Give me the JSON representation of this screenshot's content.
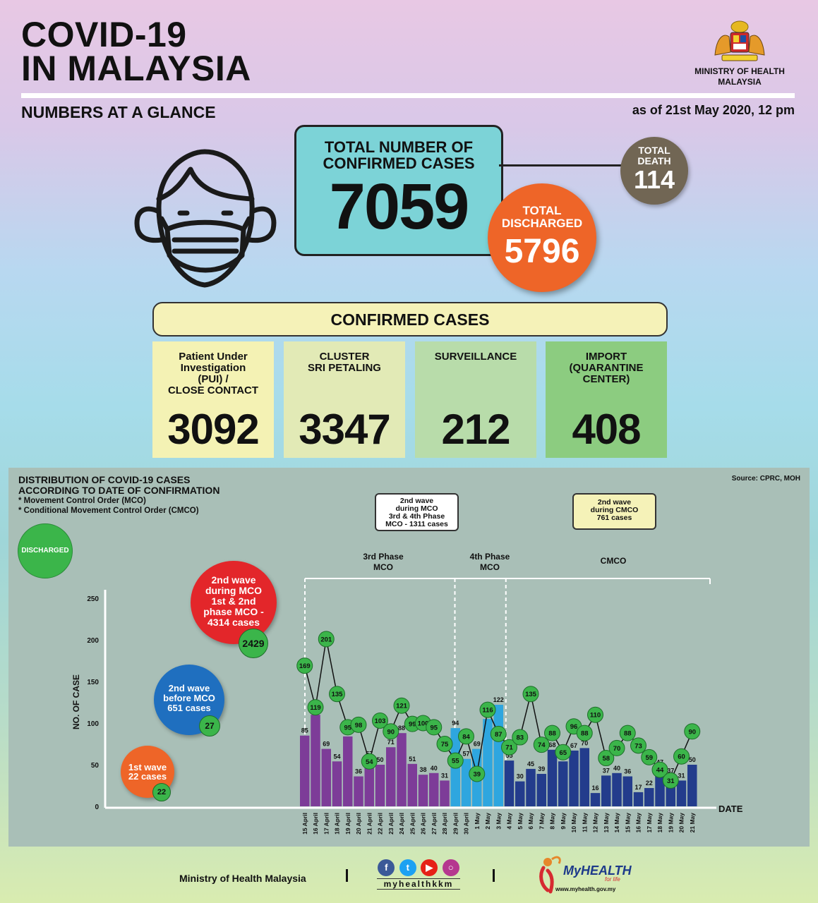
{
  "header": {
    "title_line1": "COVID-19",
    "title_line2": "IN MALAYSIA",
    "subtitle": "NUMBERS AT A GLANCE",
    "as_of": "as of 21st May 2020, 12 pm",
    "ministry_line1": "MINISTRY OF HEALTH",
    "ministry_line2": "MALAYSIA"
  },
  "totals": {
    "confirmed_label_line1": "TOTAL NUMBER OF",
    "confirmed_label_line2": "CONFIRMED CASES",
    "confirmed": "7059",
    "death_label_line1": "TOTAL",
    "death_label_line2": "DEATH",
    "death": "114",
    "discharged_label_line1": "TOTAL",
    "discharged_label_line2": "DISCHARGED",
    "discharged": "5796"
  },
  "confirmed_cases": {
    "header": "CONFIRMED CASES",
    "boxes": [
      {
        "label_lines": [
          "Patient Under",
          "Investigation",
          "(PUI) /",
          "CLOSE CONTACT"
        ],
        "value": "3092"
      },
      {
        "label_lines": [
          "CLUSTER",
          "SRI PETALING"
        ],
        "value": "3347"
      },
      {
        "label_lines": [
          "SURVEILLANCE"
        ],
        "value": "212"
      },
      {
        "label_lines": [
          "IMPORT",
          "(QUARANTINE",
          "CENTER)"
        ],
        "value": "408"
      }
    ]
  },
  "distribution": {
    "title_line1": "DISTRIBUTION OF COVID-19 CASES",
    "title_line2": "ACCORDING TO DATE OF CONFIRMATION",
    "note1": "* Movement Control Order (MCO)",
    "note2": "* Conditional Movement Control Order (CMCO)",
    "source": "Source: CPRC, MOH",
    "legend_discharged": "DISCHARGED",
    "box_mco_lines": [
      "2nd wave",
      "during MCO",
      "3rd & 4th Phase",
      "MCO - 1311 cases"
    ],
    "box_cmco_lines": [
      "2nd wave",
      "during CMCO",
      "761 cases"
    ],
    "phase3_lines": [
      "3rd Phase",
      "MCO"
    ],
    "phase4_lines": [
      "4th Phase",
      "MCO"
    ],
    "cmco": "CMCO",
    "wave1_lines": [
      "1st wave",
      "22 cases"
    ],
    "wave1_discharged": "22",
    "wave2_before_lines": [
      "2nd wave",
      "before MCO",
      "651 cases"
    ],
    "wave2_before_discharged": "27",
    "wave2_mco_lines": [
      "2nd wave",
      "during MCO",
      "1st & 2nd",
      "phase MCO -",
      "4314 cases"
    ],
    "wave2_mco_discharged": "2429"
  },
  "chart_data": {
    "type": "bar",
    "ylabel": "NO. OF CASE",
    "xlabel": "DATE",
    "ylim": [
      0,
      250
    ],
    "yticks": [
      0,
      50,
      100,
      150,
      200,
      250
    ],
    "categories": [
      "15 April",
      "16 April",
      "17 April",
      "18 April",
      "19 April",
      "20 April",
      "21 April",
      "22 April",
      "23 April",
      "24 April",
      "25 April",
      "26 April",
      "27 April",
      "28 April",
      "29 April",
      "30 April",
      "1 May",
      "2 May",
      "3 May",
      "4 May",
      "5 May",
      "6 May",
      "7 May",
      "8 May",
      "9 May",
      "10 May",
      "11 May",
      "12 May",
      "13 May",
      "14 May",
      "15 May",
      "16 May",
      "17 May",
      "18 May",
      "19 May",
      "20 May",
      "21 May"
    ],
    "series": [
      {
        "values": [
          85,
          110,
          69,
          54,
          84,
          36,
          57,
          50,
          71,
          88,
          51,
          38,
          40,
          31,
          94,
          57,
          69,
          105,
          122,
          55,
          30,
          45,
          39,
          68,
          54,
          67,
          70,
          16,
          37,
          40,
          36,
          17,
          22,
          47,
          37,
          31,
          50
        ]
      },
      {
        "name": "DISCHARGED",
        "values": [
          169,
          119,
          201,
          135,
          95,
          98,
          54,
          103,
          90,
          121,
          99,
          100,
          95,
          75,
          55,
          84,
          39,
          116,
          87,
          71,
          83,
          135,
          74,
          88,
          65,
          96,
          88,
          110,
          58,
          70,
          88,
          73,
          59,
          44,
          31,
          60,
          90
        ]
      }
    ],
    "bar_colors": {
      "phase3": "#7d3c98",
      "phase4": "#2ea6df",
      "cmco": "#233c8c"
    },
    "discharged_color": "#3bb54a",
    "legend_position": "top-left"
  },
  "footer": {
    "ministry": "Ministry of Health Malaysia",
    "handle": "myhealthkkm",
    "brand": "MyHEALTH",
    "brand_tag": "for life",
    "url": "www.myhealth.gov.my",
    "social_icons": [
      "facebook-icon",
      "twitter-icon",
      "youtube-icon",
      "instagram-icon"
    ]
  }
}
